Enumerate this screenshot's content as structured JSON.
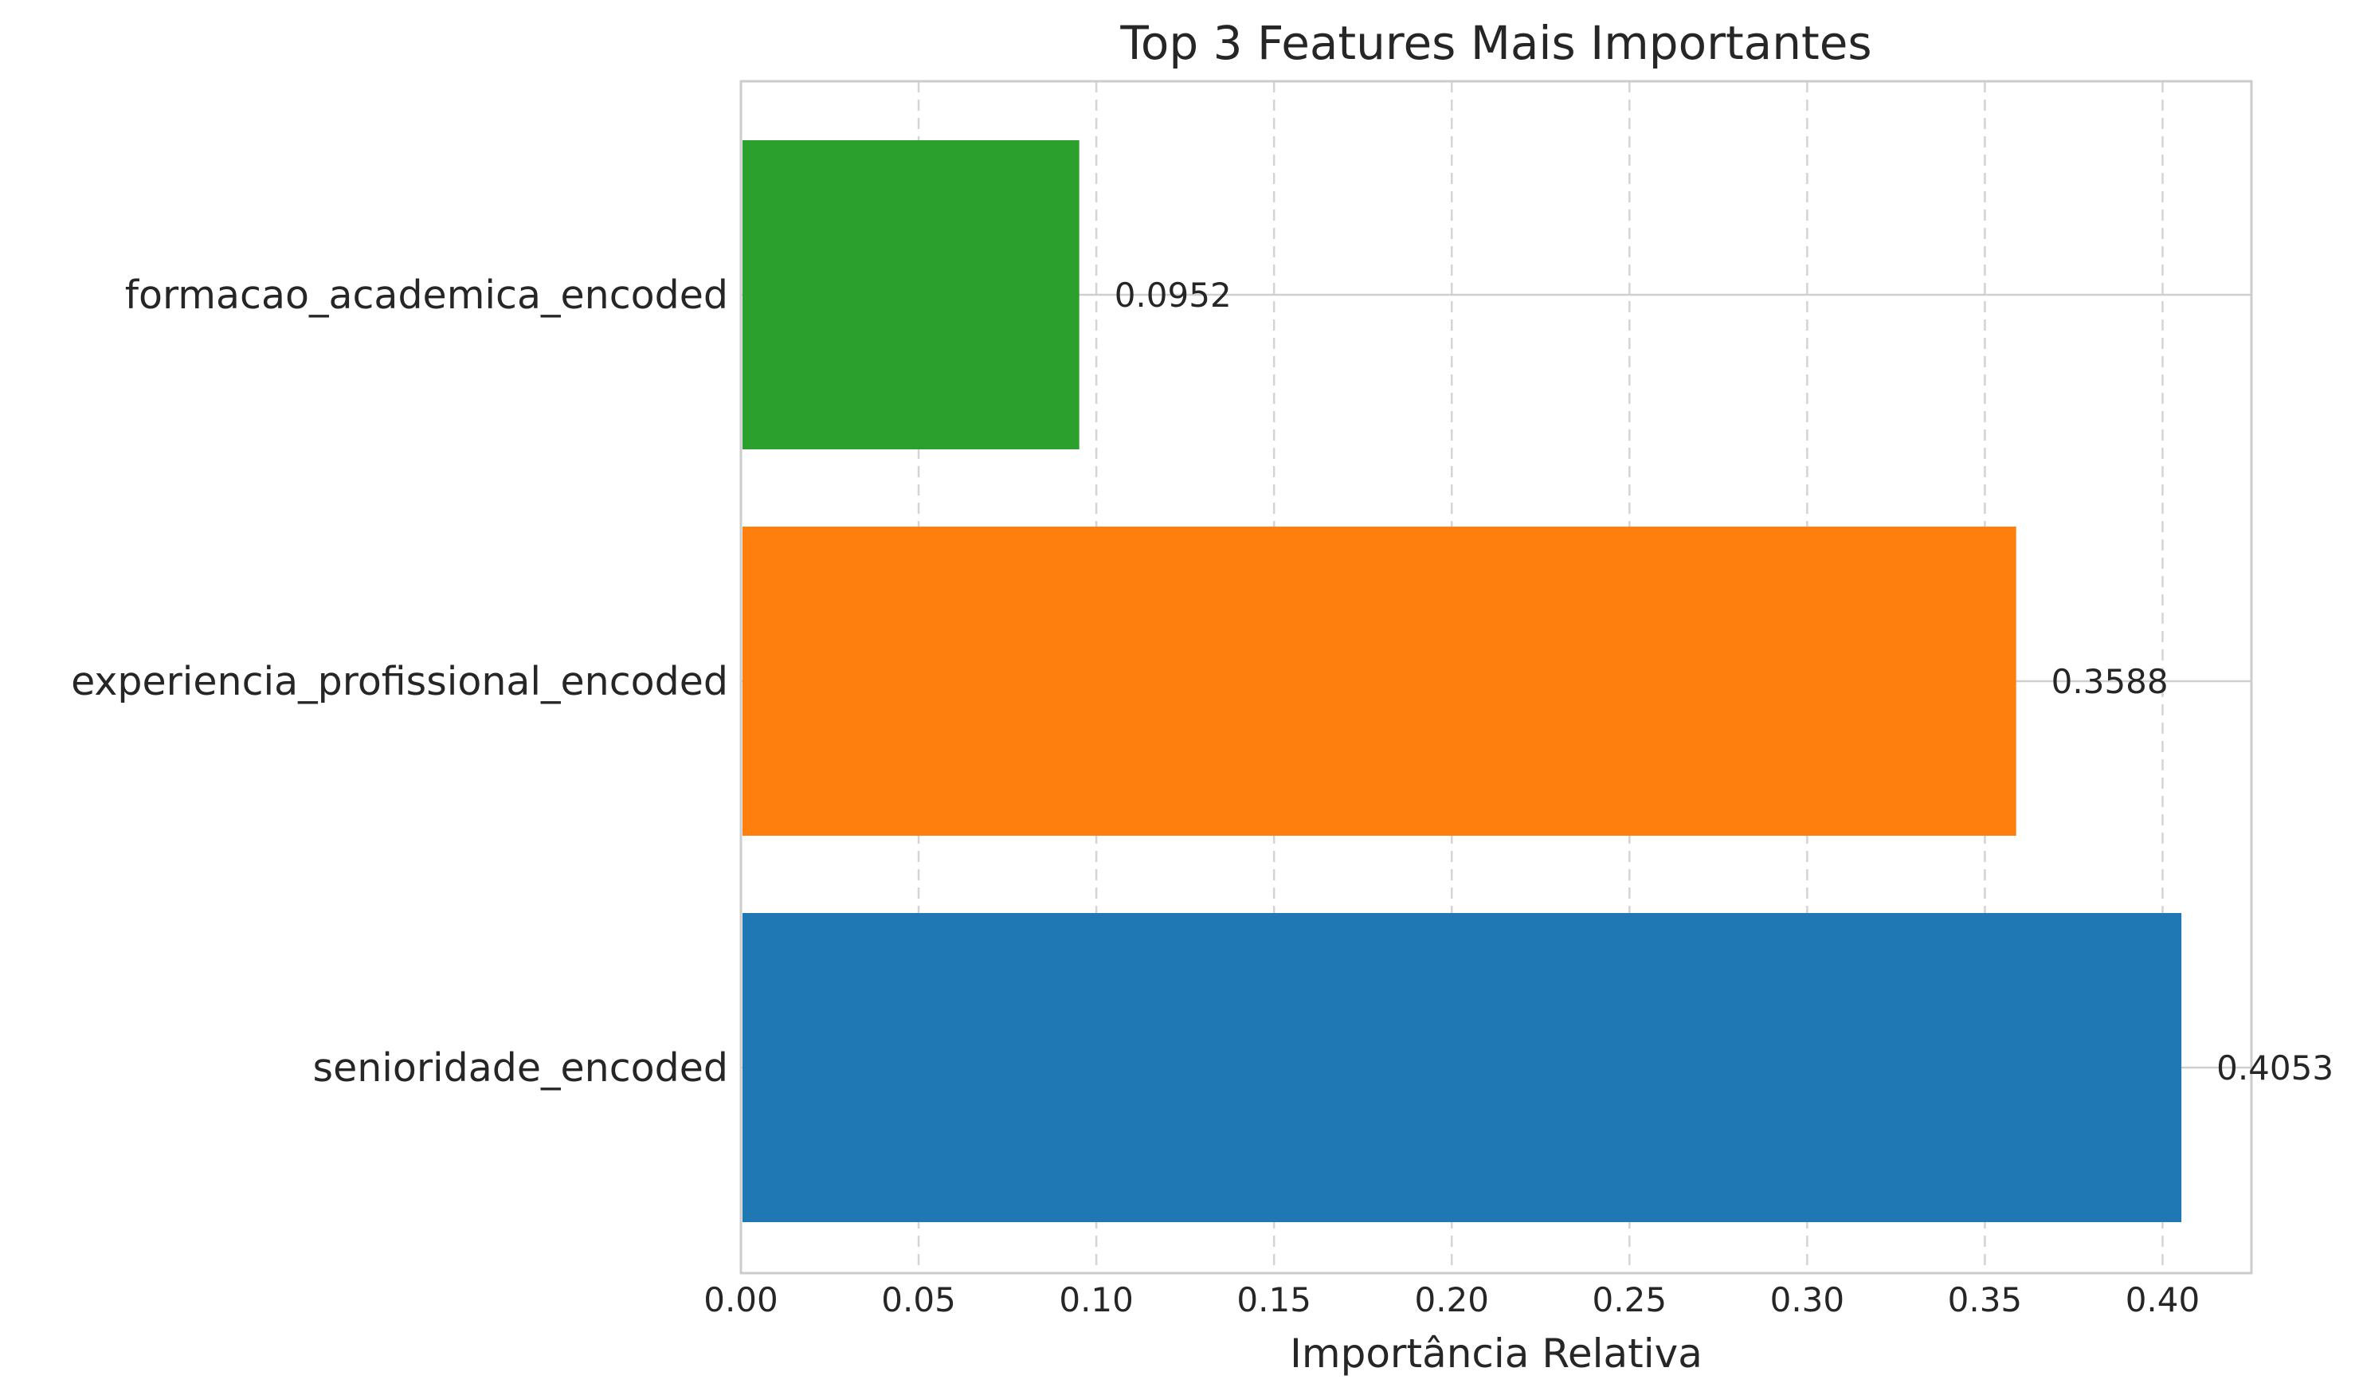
{
  "chart_data": {
    "type": "bar",
    "orientation": "horizontal",
    "title": "Top 3 Features Mais Importantes",
    "xlabel": "Importância Relativa",
    "ylabel": "",
    "categories": [
      "senioridade_encoded",
      "experiencia_profissional_encoded",
      "formacao_academica_encoded"
    ],
    "values": [
      0.4053,
      0.3588,
      0.0952
    ],
    "value_labels": [
      "0.4053",
      "0.3588",
      "0.0952"
    ],
    "colors": [
      "#1f77b4",
      "#ff7f0e",
      "#2ca02c"
    ],
    "xlim": [
      0,
      0.425
    ],
    "xticks": [
      0.0,
      0.05,
      0.1,
      0.15,
      0.2,
      0.25,
      0.3,
      0.35,
      0.4
    ],
    "xtick_labels": [
      "0.00",
      "0.05",
      "0.10",
      "0.15",
      "0.20",
      "0.25",
      "0.30",
      "0.35",
      "0.40"
    ],
    "grid": true,
    "legend": "none"
  }
}
